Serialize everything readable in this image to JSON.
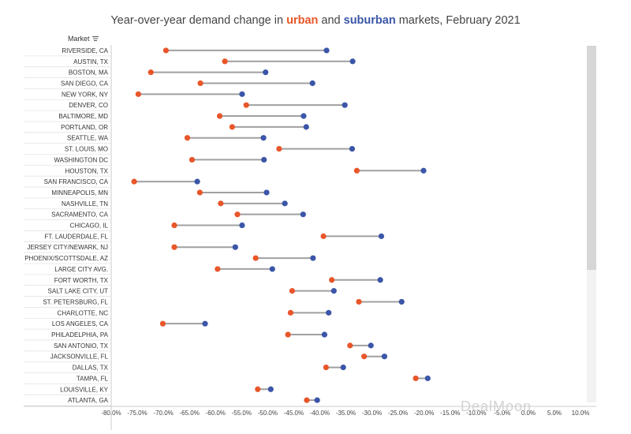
{
  "title": {
    "prefix": "Year-over-year demand change in ",
    "urban": "urban",
    "middle": " and ",
    "suburban": "suburban",
    "suffix": " markets, February 2021"
  },
  "header": {
    "market_label": "Market"
  },
  "watermark": "DealMoon",
  "colors": {
    "urban": "#e8562a",
    "suburban": "#3b56a8",
    "connector": "#a0a0a0"
  },
  "icons": {
    "sort": "sort-descending-icon",
    "watermark": "dealmoon-logo"
  },
  "chart_data": {
    "type": "dumbbell",
    "xlim": [
      -80,
      10
    ],
    "xticks": [
      "-80.0%",
      "-75.0%",
      "-70.0%",
      "-65.0%",
      "-60.0%",
      "-55.0%",
      "-50.0%",
      "-45.0%",
      "-40.0%",
      "-35.0%",
      "-30.0%",
      "-25.0%",
      "-20.0%",
      "-15.0%",
      "-10.0%",
      "-5.0%",
      "0.0%",
      "5.0%",
      "10.0%"
    ],
    "xtick_values": [
      -80,
      -75,
      -70,
      -65,
      -60,
      -55,
      -50,
      -45,
      -40,
      -35,
      -30,
      -25,
      -20,
      -15,
      -10,
      -5,
      0,
      5,
      10
    ],
    "categories": [
      "RIVERSIDE, CA",
      "AUSTIN, TX",
      "BOSTON, MA",
      "SAN DIEGO, CA",
      "NEW YORK, NY",
      "DENVER, CO",
      "BALTIMORE, MD",
      "PORTLAND, OR",
      "SEATTLE, WA",
      "ST. LOUIS, MO",
      "WASHINGTON DC",
      "HOUSTON, TX",
      "SAN FRANCISCO, CA",
      "MINNEAPOLIS, MN",
      "NASHVILLE, TN",
      "SACRAMENTO, CA",
      "CHICAGO, IL",
      "FT. LAUDERDALE, FL",
      "JERSEY CITY/NEWARK, NJ",
      "PHOENIX/SCOTTSDALE, AZ",
      "LARGE CITY AVG.",
      "FORT WORTH, TX",
      "SALT LAKE CITY, UT",
      "ST. PETERSBURG, FL",
      "CHARLOTTE, NC",
      "LOS ANGELES, CA",
      "PHILADELPHIA, PA",
      "SAN ANTONIO, TX",
      "JACKSONVILLE, FL",
      "DALLAS, TX",
      "TAMPA, FL",
      "LOUISVILLE, KY",
      "ATLANTA, GA"
    ],
    "series": [
      {
        "name": "urban",
        "values": [
          -69.5,
          -58.2,
          -72.4,
          -62.9,
          -74.8,
          -54.1,
          -59.2,
          -56.8,
          -65.4,
          -47.8,
          -64.5,
          -32.9,
          -75.6,
          -63.0,
          -59.0,
          -55.8,
          -67.9,
          -39.3,
          -67.9,
          -52.3,
          -59.6,
          -37.7,
          -45.3,
          -32.5,
          -45.6,
          -70.1,
          -46.1,
          -34.2,
          -31.5,
          -38.8,
          -21.6,
          -51.9,
          -42.5
        ]
      },
      {
        "name": "suburban",
        "values": [
          -38.7,
          -33.7,
          -50.4,
          -41.4,
          -54.9,
          -35.2,
          -43.1,
          -42.6,
          -50.8,
          -33.8,
          -50.7,
          -20.1,
          -63.5,
          -50.2,
          -46.7,
          -43.2,
          -54.9,
          -28.2,
          -56.2,
          -41.3,
          -49.1,
          -28.4,
          -37.3,
          -24.3,
          -38.3,
          -62.0,
          -39.1,
          -30.2,
          -27.6,
          -35.5,
          -19.3,
          -49.4,
          -40.5
        ]
      }
    ]
  }
}
